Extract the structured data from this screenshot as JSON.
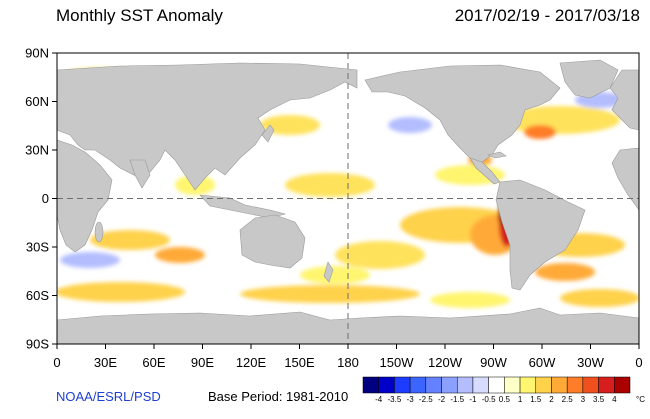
{
  "header": {
    "title": "Monthly SST Anomaly",
    "date_range": "2017/02/19 - 2017/03/18"
  },
  "axes": {
    "lat_labels": [
      "90N",
      "60N",
      "30N",
      "0",
      "30S",
      "60S",
      "90S"
    ],
    "lon_labels": [
      "0",
      "30E",
      "60E",
      "90E",
      "120E",
      "150E",
      "180",
      "150W",
      "120W",
      "90W",
      "60W",
      "30W",
      "0"
    ]
  },
  "footer": {
    "credit": "NOAA/ESRL/PSD",
    "base_period": "Base Period: 1981-2010"
  },
  "colorbar": {
    "labels": [
      "-4",
      "-3.5",
      "-3",
      "-2.5",
      "-2",
      "-1.5",
      "-1",
      "-0.5",
      "0.5",
      "1",
      "1.5",
      "2",
      "2.5",
      "3",
      "3.5",
      "4"
    ],
    "unit": "°C",
    "colors": [
      "#000080",
      "#0000c8",
      "#1e3cff",
      "#3c64ff",
      "#6482ff",
      "#8ca0ff",
      "#b4beff",
      "#d7dcff",
      "#ffffff",
      "#ffffc8",
      "#fff56e",
      "#ffd24b",
      "#ffaa37",
      "#ff7d28",
      "#f0501e",
      "#d71e1e",
      "#aa0000"
    ]
  },
  "map": {
    "land_color": "#c8c8c8",
    "ocean_color": "#ffffff"
  }
}
